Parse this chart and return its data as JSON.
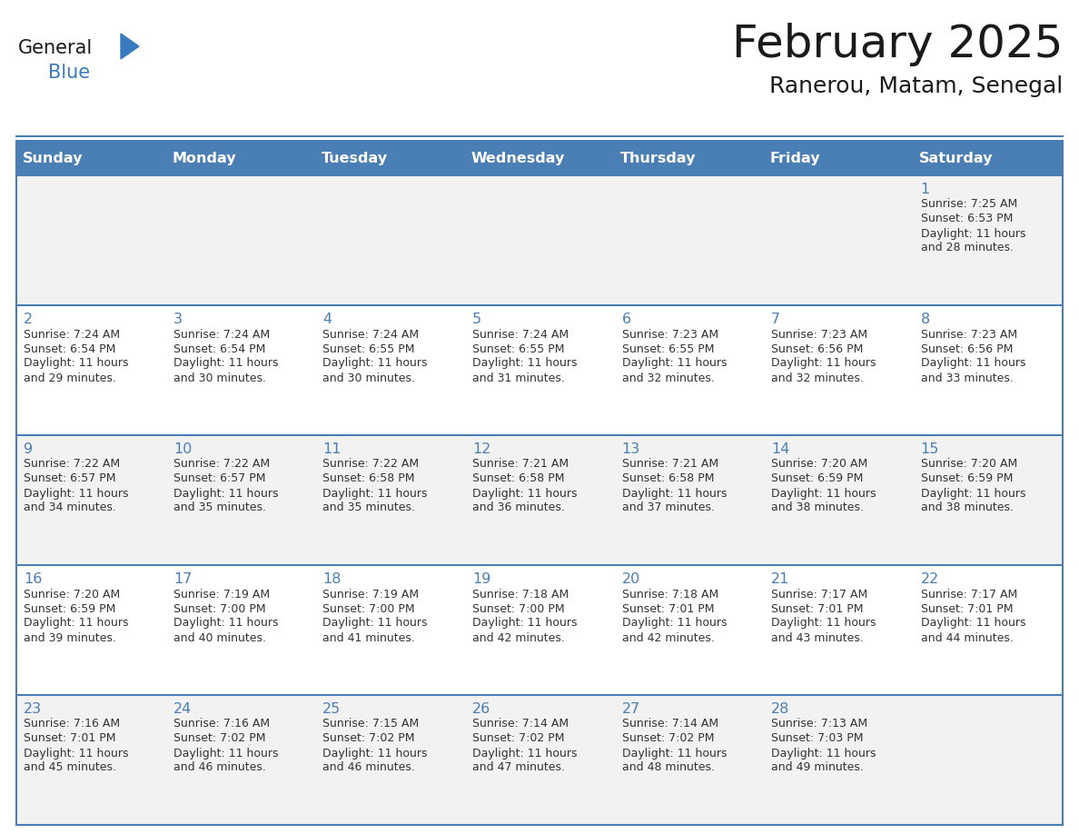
{
  "title": "February 2025",
  "subtitle": "Ranerou, Matam, Senegal",
  "days_of_week": [
    "Sunday",
    "Monday",
    "Tuesday",
    "Wednesday",
    "Thursday",
    "Friday",
    "Saturday"
  ],
  "header_bg": "#4a7fb5",
  "header_text": "#FFFFFF",
  "cell_bg_row0": "#f2f2f2",
  "cell_bg_row1": "#ffffff",
  "cell_bg_row2": "#f2f2f2",
  "cell_bg_row3": "#ffffff",
  "cell_bg_row4": "#f2f2f2",
  "cell_border": "#4a7fb5",
  "day_num_color": "#4a7fb5",
  "info_color": "#333333",
  "title_color": "#1a1a1a",
  "logo_general_color": "#1a1a1a",
  "logo_blue_color": "#3a7abf",
  "logo_triangle_color": "#3a7abf",
  "calendar_data": [
    {
      "day": 1,
      "col": 6,
      "row": 0,
      "sunrise": "7:25 AM",
      "sunset": "6:53 PM",
      "minutes": "28"
    },
    {
      "day": 2,
      "col": 0,
      "row": 1,
      "sunrise": "7:24 AM",
      "sunset": "6:54 PM",
      "minutes": "29"
    },
    {
      "day": 3,
      "col": 1,
      "row": 1,
      "sunrise": "7:24 AM",
      "sunset": "6:54 PM",
      "minutes": "30"
    },
    {
      "day": 4,
      "col": 2,
      "row": 1,
      "sunrise": "7:24 AM",
      "sunset": "6:55 PM",
      "minutes": "30"
    },
    {
      "day": 5,
      "col": 3,
      "row": 1,
      "sunrise": "7:24 AM",
      "sunset": "6:55 PM",
      "minutes": "31"
    },
    {
      "day": 6,
      "col": 4,
      "row": 1,
      "sunrise": "7:23 AM",
      "sunset": "6:55 PM",
      "minutes": "32"
    },
    {
      "day": 7,
      "col": 5,
      "row": 1,
      "sunrise": "7:23 AM",
      "sunset": "6:56 PM",
      "minutes": "32"
    },
    {
      "day": 8,
      "col": 6,
      "row": 1,
      "sunrise": "7:23 AM",
      "sunset": "6:56 PM",
      "minutes": "33"
    },
    {
      "day": 9,
      "col": 0,
      "row": 2,
      "sunrise": "7:22 AM",
      "sunset": "6:57 PM",
      "minutes": "34"
    },
    {
      "day": 10,
      "col": 1,
      "row": 2,
      "sunrise": "7:22 AM",
      "sunset": "6:57 PM",
      "minutes": "35"
    },
    {
      "day": 11,
      "col": 2,
      "row": 2,
      "sunrise": "7:22 AM",
      "sunset": "6:58 PM",
      "minutes": "35"
    },
    {
      "day": 12,
      "col": 3,
      "row": 2,
      "sunrise": "7:21 AM",
      "sunset": "6:58 PM",
      "minutes": "36"
    },
    {
      "day": 13,
      "col": 4,
      "row": 2,
      "sunrise": "7:21 AM",
      "sunset": "6:58 PM",
      "minutes": "37"
    },
    {
      "day": 14,
      "col": 5,
      "row": 2,
      "sunrise": "7:20 AM",
      "sunset": "6:59 PM",
      "minutes": "38"
    },
    {
      "day": 15,
      "col": 6,
      "row": 2,
      "sunrise": "7:20 AM",
      "sunset": "6:59 PM",
      "minutes": "38"
    },
    {
      "day": 16,
      "col": 0,
      "row": 3,
      "sunrise": "7:20 AM",
      "sunset": "6:59 PM",
      "minutes": "39"
    },
    {
      "day": 17,
      "col": 1,
      "row": 3,
      "sunrise": "7:19 AM",
      "sunset": "7:00 PM",
      "minutes": "40"
    },
    {
      "day": 18,
      "col": 2,
      "row": 3,
      "sunrise": "7:19 AM",
      "sunset": "7:00 PM",
      "minutes": "41"
    },
    {
      "day": 19,
      "col": 3,
      "row": 3,
      "sunrise": "7:18 AM",
      "sunset": "7:00 PM",
      "minutes": "42"
    },
    {
      "day": 20,
      "col": 4,
      "row": 3,
      "sunrise": "7:18 AM",
      "sunset": "7:01 PM",
      "minutes": "42"
    },
    {
      "day": 21,
      "col": 5,
      "row": 3,
      "sunrise": "7:17 AM",
      "sunset": "7:01 PM",
      "minutes": "43"
    },
    {
      "day": 22,
      "col": 6,
      "row": 3,
      "sunrise": "7:17 AM",
      "sunset": "7:01 PM",
      "minutes": "44"
    },
    {
      "day": 23,
      "col": 0,
      "row": 4,
      "sunrise": "7:16 AM",
      "sunset": "7:01 PM",
      "minutes": "45"
    },
    {
      "day": 24,
      "col": 1,
      "row": 4,
      "sunrise": "7:16 AM",
      "sunset": "7:02 PM",
      "minutes": "46"
    },
    {
      "day": 25,
      "col": 2,
      "row": 4,
      "sunrise": "7:15 AM",
      "sunset": "7:02 PM",
      "minutes": "46"
    },
    {
      "day": 26,
      "col": 3,
      "row": 4,
      "sunrise": "7:14 AM",
      "sunset": "7:02 PM",
      "minutes": "47"
    },
    {
      "day": 27,
      "col": 4,
      "row": 4,
      "sunrise": "7:14 AM",
      "sunset": "7:02 PM",
      "minutes": "48"
    },
    {
      "day": 28,
      "col": 5,
      "row": 4,
      "sunrise": "7:13 AM",
      "sunset": "7:03 PM",
      "minutes": "49"
    }
  ]
}
